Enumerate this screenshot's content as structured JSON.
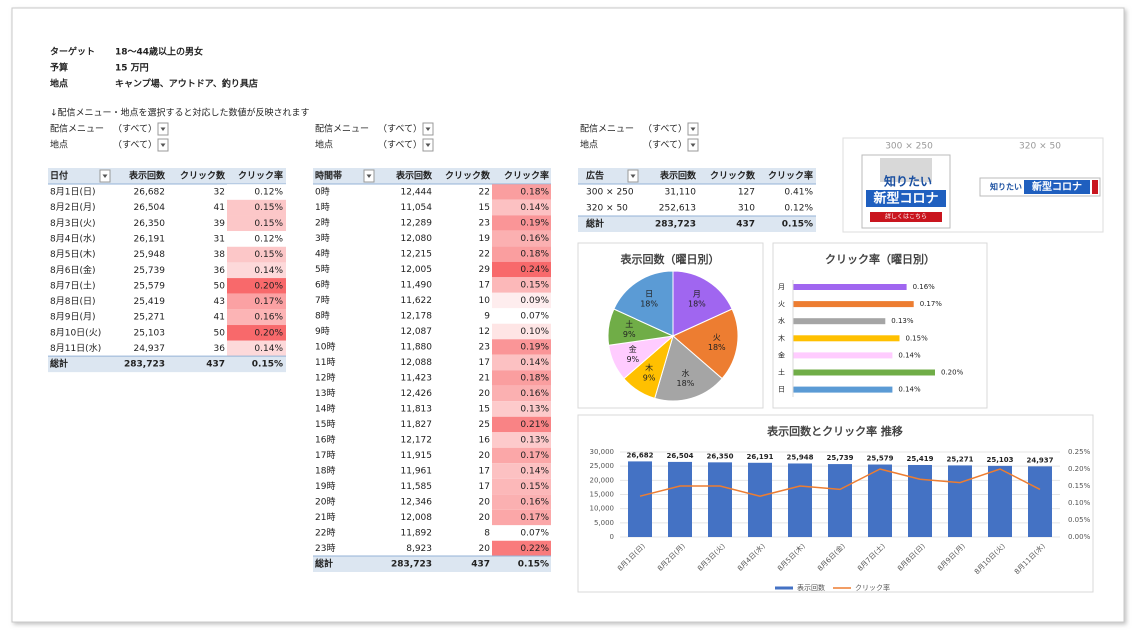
{
  "header": {
    "rows": [
      [
        "ターゲット",
        "18〜44歳以上の男女"
      ],
      [
        "予算",
        "15 万円"
      ],
      [
        "地点",
        "キャンプ場、アウトドア、釣り具店"
      ]
    ],
    "note": "↓配信メニュー・地点を選択すると対応した数値が反映されます"
  },
  "filters": [
    [
      [
        "配信メニュー",
        "（すべて）"
      ],
      [
        "地点",
        "（すべて）"
      ]
    ],
    [
      [
        "配信メニュー",
        "（すべて）"
      ],
      [
        "地点",
        "（すべて）"
      ]
    ],
    [
      [
        "配信メニュー",
        "（すべて）"
      ],
      [
        "地点",
        "（すべて）"
      ]
    ]
  ],
  "tables": [
    {
      "columns": [
        "日付",
        "表示回数",
        "クリック数",
        "クリック率"
      ],
      "rows": [
        [
          "8月1日(日)",
          "26,682",
          "32",
          "0.12%"
        ],
        [
          "8月2日(月)",
          "26,504",
          "41",
          "0.15%"
        ],
        [
          "8月3日(火)",
          "26,350",
          "39",
          "0.15%"
        ],
        [
          "8月4日(水)",
          "26,191",
          "31",
          "0.12%"
        ],
        [
          "8月5日(木)",
          "25,948",
          "38",
          "0.15%"
        ],
        [
          "8月6日(金)",
          "25,739",
          "36",
          "0.14%"
        ],
        [
          "8月7日(土)",
          "25,579",
          "50",
          "0.20%"
        ],
        [
          "8月8日(日)",
          "25,419",
          "43",
          "0.17%"
        ],
        [
          "8月9日(月)",
          "25,271",
          "41",
          "0.16%"
        ],
        [
          "8月10日(火)",
          "25,103",
          "50",
          "0.20%"
        ],
        [
          "8月11日(水)",
          "24,937",
          "36",
          "0.14%"
        ]
      ],
      "total": [
        "総計",
        "283,723",
        "437",
        "0.15%"
      ]
    },
    {
      "columns": [
        "時間帯",
        "表示回数",
        "クリック数",
        "クリック率"
      ],
      "rows": [
        [
          "0時",
          "12,444",
          "22",
          "0.18%"
        ],
        [
          "1時",
          "11,054",
          "15",
          "0.14%"
        ],
        [
          "2時",
          "12,289",
          "23",
          "0.19%"
        ],
        [
          "3時",
          "12,080",
          "19",
          "0.16%"
        ],
        [
          "4時",
          "12,215",
          "22",
          "0.18%"
        ],
        [
          "5時",
          "12,005",
          "29",
          "0.24%"
        ],
        [
          "6時",
          "11,490",
          "17",
          "0.15%"
        ],
        [
          "7時",
          "11,622",
          "10",
          "0.09%"
        ],
        [
          "8時",
          "12,178",
          "9",
          "0.07%"
        ],
        [
          "9時",
          "12,087",
          "12",
          "0.10%"
        ],
        [
          "10時",
          "11,880",
          "23",
          "0.19%"
        ],
        [
          "11時",
          "12,088",
          "17",
          "0.14%"
        ],
        [
          "12時",
          "11,423",
          "21",
          "0.18%"
        ],
        [
          "13時",
          "12,426",
          "20",
          "0.16%"
        ],
        [
          "14時",
          "11,813",
          "15",
          "0.13%"
        ],
        [
          "15時",
          "11,827",
          "25",
          "0.21%"
        ],
        [
          "16時",
          "12,172",
          "16",
          "0.13%"
        ],
        [
          "17時",
          "11,915",
          "20",
          "0.17%"
        ],
        [
          "18時",
          "11,961",
          "17",
          "0.14%"
        ],
        [
          "19時",
          "11,585",
          "17",
          "0.15%"
        ],
        [
          "20時",
          "12,346",
          "20",
          "0.16%"
        ],
        [
          "21時",
          "12,008",
          "20",
          "0.17%"
        ],
        [
          "22時",
          "11,892",
          "8",
          "0.07%"
        ],
        [
          "23時",
          "8,923",
          "20",
          "0.22%"
        ]
      ],
      "total": [
        "総計",
        "283,723",
        "437",
        "0.15%"
      ]
    },
    {
      "columns": [
        "広告",
        "表示回数",
        "クリック数",
        "クリック率"
      ],
      "rows": [
        [
          "300 × 250",
          "31,110",
          "127",
          "0.41%"
        ],
        [
          "320 × 50",
          "252,613",
          "310",
          "0.12%"
        ]
      ],
      "total": [
        "総計",
        "283,723",
        "437",
        "0.15%"
      ]
    }
  ],
  "ads": [
    {
      "size": "300 × 250",
      "headline": "知りたい",
      "title": "新型コロナ",
      "button": "詳しくはこちら"
    },
    {
      "size": "320 × 50",
      "headline": "知りたい",
      "title": "新型コロナ"
    }
  ],
  "chart_data": [
    {
      "type": "pie",
      "title": "表示回数（曜日別）",
      "categories": [
        "月",
        "火",
        "水",
        "木",
        "金",
        "土",
        "日"
      ],
      "values": [
        18,
        18,
        18,
        9,
        9,
        9,
        18
      ],
      "value_labels": [
        "18%",
        "18%",
        "18%",
        "9%",
        "9%",
        "9%",
        "18%"
      ],
      "colors": [
        "#a066f0",
        "#ed7d31",
        "#a5a5a5",
        "#ffc000",
        "#ffccff",
        "#70ad47",
        "#5b9bd5"
      ]
    },
    {
      "type": "hbar",
      "title": "クリック率（曜日別）",
      "categories": [
        "月",
        "火",
        "水",
        "木",
        "金",
        "土",
        "日"
      ],
      "values": [
        0.16,
        0.17,
        0.13,
        0.15,
        0.14,
        0.2,
        0.14
      ],
      "value_labels": [
        "0.16%",
        "0.17%",
        "0.13%",
        "0.15%",
        "0.14%",
        "0.20%",
        "0.14%"
      ],
      "colors": [
        "#a066f0",
        "#ed7d31",
        "#a5a5a5",
        "#ffc000",
        "#ffccff",
        "#70ad47",
        "#5b9bd5"
      ]
    },
    {
      "type": "combo",
      "title": "表示回数とクリック率 推移",
      "categories": [
        "8月1日(日)",
        "8月2日(月)",
        "8月3日(火)",
        "8月4日(水)",
        "8月5日(木)",
        "8月6日(金)",
        "8月7日(土)",
        "8月8日(日)",
        "8月9日(月)",
        "8月10日(火)",
        "8月11日(水)"
      ],
      "series": [
        {
          "name": "表示回数",
          "color": "#4472c4",
          "values": [
            26682,
            26504,
            26350,
            26191,
            25948,
            25739,
            25579,
            25419,
            25271,
            25103,
            24937
          ],
          "value_labels": [
            "26,682",
            "26,504",
            "26,350",
            "26,191",
            "25,948",
            "25,739",
            "25,579",
            "25,419",
            "25,271",
            "25,103",
            "24,937"
          ]
        },
        {
          "name": "クリック率",
          "color": "#ed7d31",
          "axis": "y2",
          "values": [
            0.12,
            0.15,
            0.15,
            0.12,
            0.15,
            0.14,
            0.2,
            0.17,
            0.16,
            0.2,
            0.14
          ]
        }
      ],
      "ylim": [
        0,
        30000
      ],
      "yticks": [
        0,
        {
          "value": 5000,
          "label": "5,000"
        },
        {
          "value": 10000,
          "label": "10,000"
        },
        {
          "value": 15000,
          "label": "15,000"
        },
        {
          "value": 20000,
          "label": "20,000"
        },
        {
          "value": 25000,
          "label": "25,000"
        },
        {
          "value": 30000,
          "label": "30,000"
        }
      ],
      "y2lim": [
        0,
        0.25
      ],
      "y2ticks": [
        {
          "value": 0,
          "label": "0.00%"
        },
        {
          "value": 0.05,
          "label": "0.05%"
        },
        {
          "value": 0.1,
          "label": "0.10%"
        },
        {
          "value": 0.15,
          "label": "0.15%"
        },
        {
          "value": 0.2,
          "label": "0.20%"
        },
        {
          "value": 0.25,
          "label": "0.25%"
        }
      ]
    }
  ]
}
